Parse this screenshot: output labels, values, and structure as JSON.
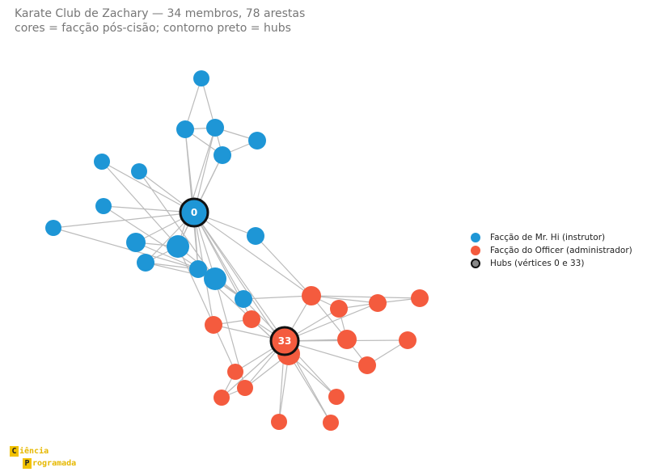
{
  "title": {
    "line1": "Karate Club de Zachary — 34 membros, 78 arestas",
    "line2": "cores = facção pós-cisão; contorno preto = hubs"
  },
  "colors": {
    "mr_hi": "#1e96d6",
    "officer": "#f45b3e",
    "edge": "#bbbbbb",
    "hub_stroke": "#111111",
    "hub_label": "#ffffff"
  },
  "legend": {
    "mr_hi": "Facção de Mr. Hi (instrutor)",
    "officer": "Facção do Officer (administrador)",
    "hubs": "Hubs (vértices 0 e 33)"
  },
  "hub_labels": {
    "hub0": "0",
    "hub33": "33"
  },
  "logo": {
    "line1_initial": "C",
    "line1_rest": "iência",
    "line2_initial": "P",
    "line2_rest": "rogramada"
  }
}
